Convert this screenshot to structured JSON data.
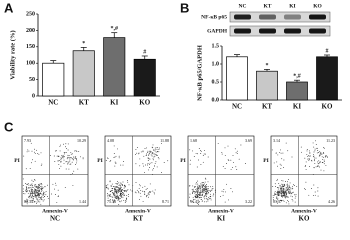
{
  "panel_labels": [
    "A",
    "B",
    "C"
  ],
  "chart_data": [
    {
      "type": "bar",
      "ylabel": "Viability rate (%)",
      "categories": [
        "NC",
        "KT",
        "KI",
        "KO"
      ],
      "values": [
        100,
        138,
        178,
        112
      ],
      "errors": [
        8,
        10,
        15,
        10
      ],
      "colors": [
        "#ffffff",
        "#c8c8c8",
        "#6e6e6e",
        "#1a1a1a"
      ],
      "annotations": [
        null,
        "*",
        "*,#",
        "#"
      ],
      "ylim": [
        0,
        250
      ],
      "yticks": [
        0,
        50,
        100,
        150,
        200,
        250
      ]
    },
    {
      "type": "bar",
      "ylabel": "NF-κB p65/GAPDH",
      "categories": [
        "NC",
        "KT",
        "KI",
        "KO"
      ],
      "values": [
        1.2,
        0.8,
        0.5,
        1.2
      ],
      "errors": [
        0.06,
        0.05,
        0.05,
        0.05
      ],
      "colors": [
        "#ffffff",
        "#c8c8c8",
        "#6e6e6e",
        "#1a1a1a"
      ],
      "annotations": [
        null,
        "*",
        "*,#",
        "#"
      ],
      "ylim": [
        0,
        1.5
      ],
      "yticks": [
        {
          "value": 0,
          "label": "0.0"
        },
        {
          "value": 0.5,
          "label": "0.5"
        },
        {
          "value": 1,
          "label": "1.0"
        },
        {
          "value": 1.5,
          "label": "1.5"
        }
      ]
    }
  ],
  "blot": {
    "lanes": [
      "NC",
      "KT",
      "KI",
      "KO"
    ],
    "rows": [
      "NF-κB p65",
      "GAPDH"
    ]
  },
  "flow": {
    "xlabel": "Annexin-V",
    "ylabel": "PI",
    "plots": [
      {
        "name": "NC",
        "quadrants": [
          "7.93",
          "10.29",
          "80.34",
          "1.44"
        ]
      },
      {
        "name": "KT",
        "quadrants": [
          "4.08",
          "11.88",
          "75.33",
          "8.71"
        ]
      },
      {
        "name": "KI",
        "quadrants": [
          "1.68",
          "3.69",
          "91.41",
          "3.22"
        ]
      },
      {
        "name": "KO",
        "quadrants": [
          "3.14",
          "11.23",
          "81.37",
          "4.26"
        ]
      }
    ]
  }
}
